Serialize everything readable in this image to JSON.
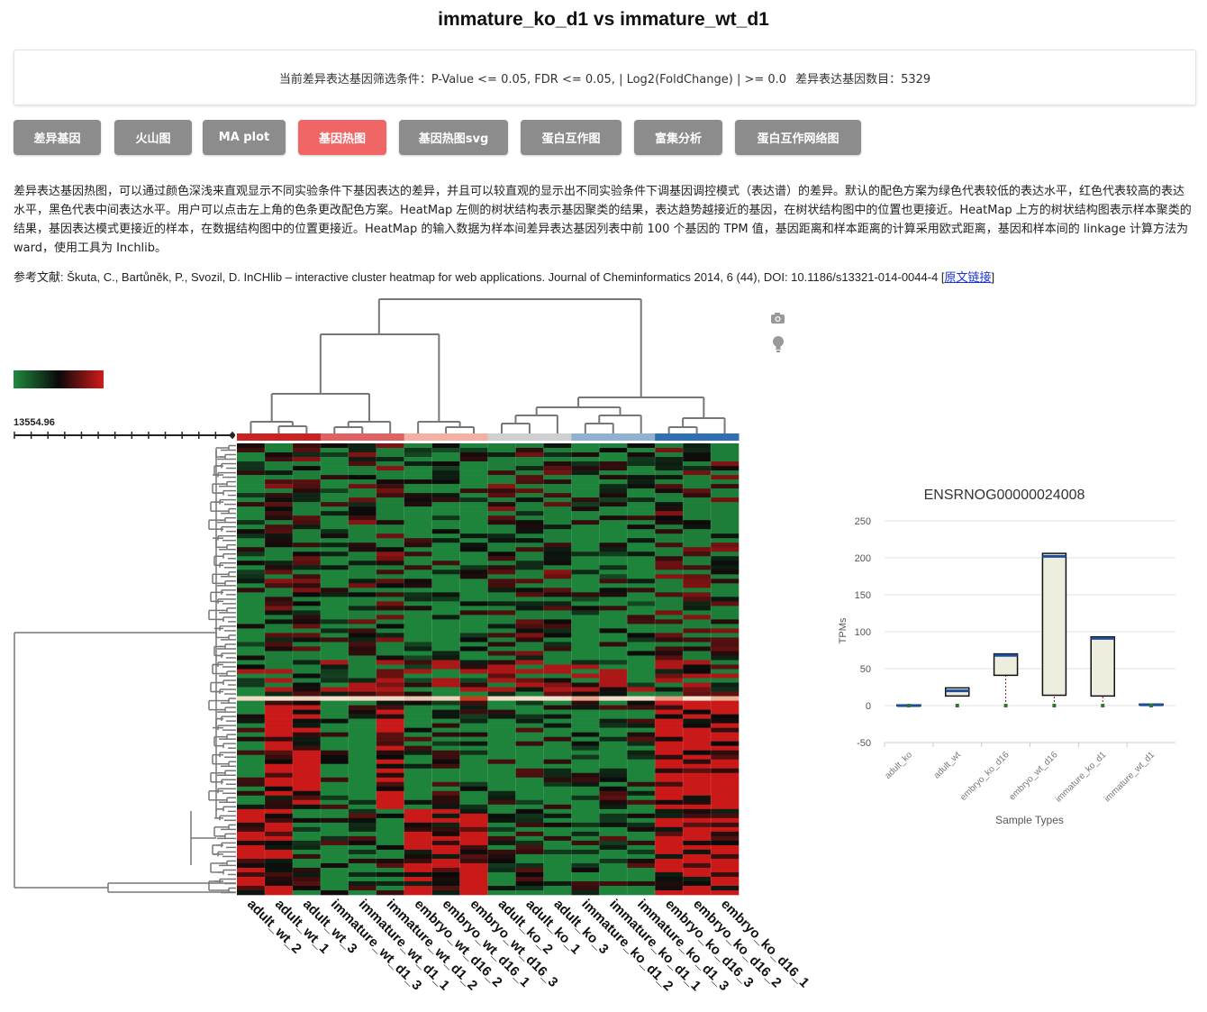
{
  "page": {
    "title": "immature_ko_d1 vs immature_wt_d1"
  },
  "filter": {
    "criteria": "当前差异表达基因筛选条件：P-Value <= 0.05, FDR <= 0.05, | Log2(FoldChange) | >= 0.0",
    "count": "差异表达基因数目：5329"
  },
  "tabs": [
    {
      "label": "差异基因",
      "active": false
    },
    {
      "label": "火山图",
      "active": false
    },
    {
      "label": "MA plot",
      "active": false
    },
    {
      "label": "基因热图",
      "active": true
    },
    {
      "label": "基因热图svg",
      "active": false
    },
    {
      "label": "蛋白互作图",
      "active": false
    },
    {
      "label": "富集分析",
      "active": false
    },
    {
      "label": "蛋白互作网络图",
      "active": false
    }
  ],
  "description": "差异表达基因热图，可以通过颜色深浅来直观显示不同实验条件下基因表达的差异，并且可以较直观的显示出不同实验条件下调基因调控模式（表达谱）的差异。默认的配色方案为绿色代表较低的表达水平，红色代表较高的表达水平，黑色代表中间表达水平。用户可以点击左上角的色条更改配色方案。HeatMap 左侧的树状结构表示基因聚类的结果，表达趋势越接近的基因，在树状结构图中的位置也更接近。HeatMap 上方的树状结构图表示样本聚类的结果，基因表达模式更接近的样本，在数据结构图中的位置更接近。HeatMap 的输入数据为样本间差异表达基因列表中前 100 个基因的 TPM 值，基因距离和样本距离的计算采用欧式距离，基因和样本间的 linkage 计算方法为 ward，使用工具为 Inchlib。",
  "reference": {
    "prefix": "参考文献: Škuta, C., Bartůněk, P., Svozil, D. InCHlib – interactive cluster heatmap for web applications. Journal of Cheminformatics 2014, 6 (44), DOI: 10.1186/s13321-014-0044-4 [",
    "link_label": "原文链接",
    "suffix": "]"
  },
  "heatmap": {
    "scale_value": "13554.96",
    "colors": {
      "low": "#1f8a3e",
      "mid": "#0a0a0a",
      "high": "#d41a1a"
    },
    "camera_icon": "camera-icon",
    "hint_icon": "lightbulb-icon",
    "columns": [
      {
        "label": "adult_wt_2",
        "group_color": "#cc2222"
      },
      {
        "label": "adult_wt_1",
        "group_color": "#cc2222"
      },
      {
        "label": "adult_wt_3",
        "group_color": "#cc2222"
      },
      {
        "label": "immature_wt_d1_3",
        "group_color": "#e06262"
      },
      {
        "label": "immature_wt_d1_1",
        "group_color": "#e06262"
      },
      {
        "label": "immature_wt_d1_2",
        "group_color": "#e06262"
      },
      {
        "label": "embryo_wt_d16_2",
        "group_color": "#f3b0a3"
      },
      {
        "label": "embryo_wt_d16_1",
        "group_color": "#f3b0a3"
      },
      {
        "label": "embryo_wt_d16_3",
        "group_color": "#f3b0a3"
      },
      {
        "label": "adult_ko_2",
        "group_color": "#d0d0d0"
      },
      {
        "label": "adult_ko_1",
        "group_color": "#d0d0d0"
      },
      {
        "label": "adult_ko_3",
        "group_color": "#d0d0d0"
      },
      {
        "label": "immature_ko_d1_2",
        "group_color": "#8fb1d2"
      },
      {
        "label": "immature_ko_d1_1",
        "group_color": "#8fb1d2"
      },
      {
        "label": "immature_ko_d1_3",
        "group_color": "#8fb1d2"
      },
      {
        "label": "embryo_ko_d16_3",
        "group_color": "#2f6fb4"
      },
      {
        "label": "embryo_ko_d16_2",
        "group_color": "#2f6fb4"
      },
      {
        "label": "embryo_ko_d16_1",
        "group_color": "#2f6fb4"
      }
    ]
  },
  "chart_data": {
    "type": "box",
    "title": "ENSRNOG00000024008",
    "xlabel": "Sample Types",
    "ylabel": "TPMs",
    "ylim": [
      -50,
      250
    ],
    "yticks": [
      -50,
      0,
      50,
      100,
      150,
      200,
      250
    ],
    "grid": true,
    "categories": [
      "adult_ko",
      "adult_wt",
      "embryo_ko_d16",
      "embryo_wt_d16",
      "immature_ko_d1",
      "immature_wt_d1"
    ],
    "boxes": [
      {
        "category": "adult_ko",
        "low": 0,
        "q1": 0,
        "median": 0,
        "q3": 1,
        "high": 1
      },
      {
        "category": "adult_wt",
        "low": 13,
        "q1": 13,
        "median": 20,
        "q3": 24,
        "high": 24
      },
      {
        "category": "embryo_ko_d16",
        "low": 0,
        "q1": 41,
        "median": 68,
        "q3": 70,
        "high": 70
      },
      {
        "category": "embryo_wt_d16",
        "low": 0,
        "q1": 14,
        "median": 202,
        "q3": 206,
        "high": 206
      },
      {
        "category": "immature_ko_d1",
        "low": 0,
        "q1": 13,
        "median": 91,
        "q3": 93,
        "high": 93
      },
      {
        "category": "immature_wt_d1",
        "low": 0,
        "q1": 1,
        "median": 1,
        "q3": 2,
        "high": 2
      }
    ],
    "colors": {
      "box_fill": "#eeeedf",
      "median": "#1f4e99",
      "whisker": "#8b1a1a",
      "point": "#2a7a2a"
    }
  }
}
